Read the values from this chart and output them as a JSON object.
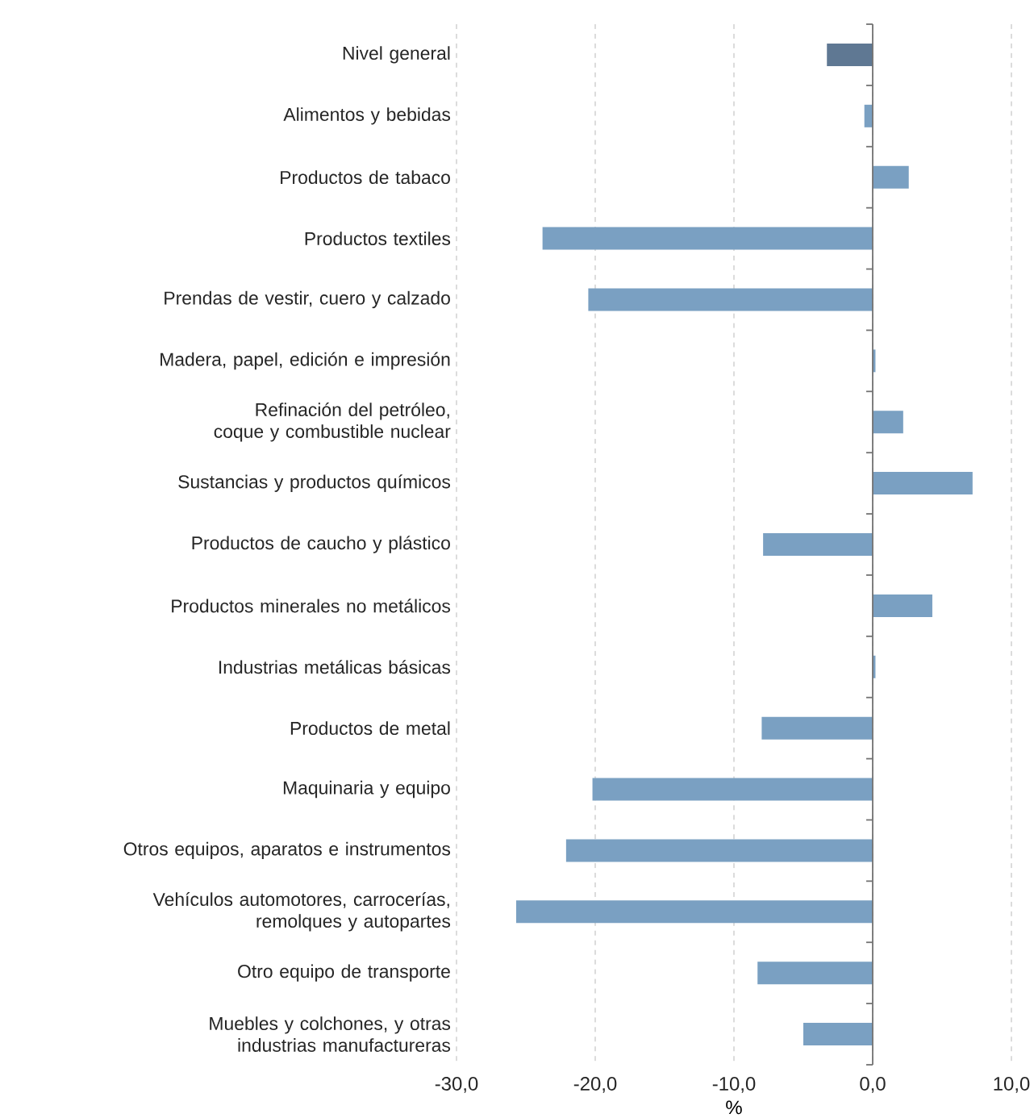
{
  "chart_data": {
    "type": "bar",
    "orientation": "horizontal",
    "xlabel": "%",
    "categories": [
      "Nivel general",
      "Alimentos y bebidas",
      "Productos de tabaco",
      "Productos textiles",
      "Prendas de vestir, cuero y calzado",
      "Madera, papel, edición e impresión",
      "Refinación del petróleo, coque y combustible nuclear",
      "Sustancias y productos químicos",
      "Productos de caucho y plástico",
      "Productos minerales no metálicos",
      "Industrias metálicas básicas",
      "Productos de metal",
      "Maquinaria y equipo",
      "Otros equipos, aparatos e instrumentos",
      "Vehículos automotores, carrocerías, remolques y autopartes",
      "Otro equipo de transporte",
      "Muebles y colchones, y otras industrias manufactureras"
    ],
    "values": [
      -3.3,
      -0.6,
      2.6,
      -23.8,
      -20.5,
      0.2,
      2.2,
      7.2,
      -7.9,
      4.3,
      0.2,
      -8.0,
      -20.2,
      -22.1,
      -25.7,
      -8.3,
      -5.0
    ],
    "colors": [
      "#5f7893",
      "#7aa0c2",
      "#7aa0c2",
      "#7aa0c2",
      "#7aa0c2",
      "#7aa0c2",
      "#7aa0c2",
      "#7aa0c2",
      "#7aa0c2",
      "#7aa0c2",
      "#7aa0c2",
      "#7aa0c2",
      "#7aa0c2",
      "#7aa0c2",
      "#7aa0c2",
      "#7aa0c2",
      "#7aa0c2"
    ],
    "xlim": [
      -30,
      10
    ],
    "xticks": [
      {
        "value": -30,
        "label": "-30,0"
      },
      {
        "value": -20,
        "label": "-20,0"
      },
      {
        "value": -10,
        "label": "-10,0"
      },
      {
        "value": 0,
        "label": "0,0"
      },
      {
        "value": 10,
        "label": "10,0"
      }
    ],
    "grid": "x"
  }
}
